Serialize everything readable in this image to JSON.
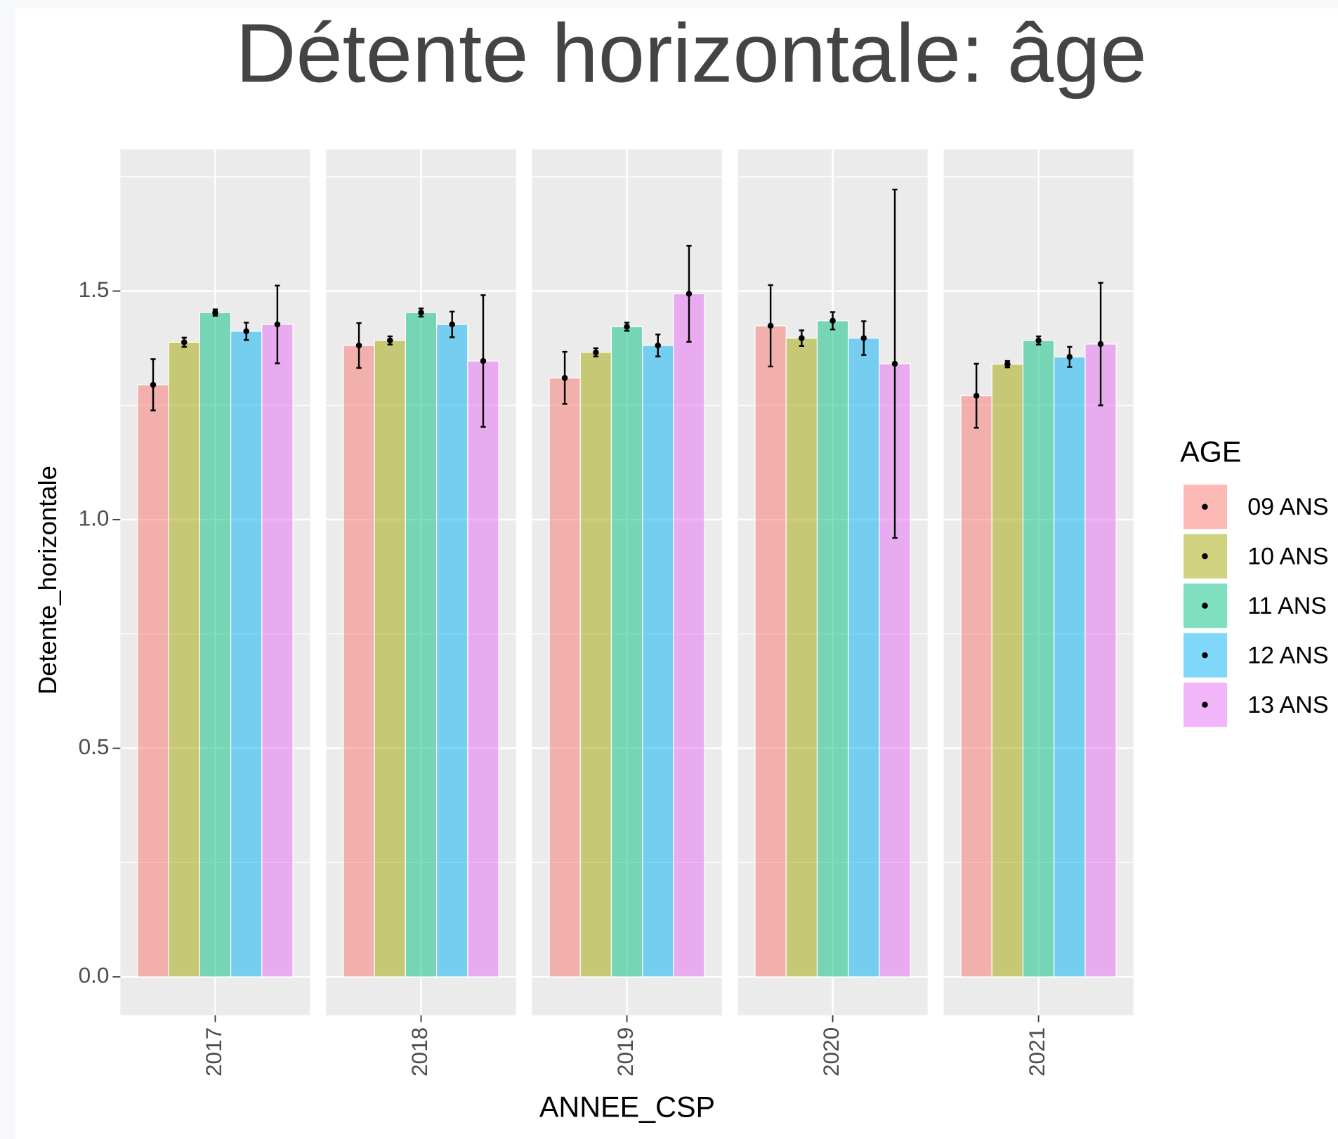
{
  "chart_data": {
    "type": "bar",
    "title": "Détente horizontale: âge",
    "x_label": "ANNEE_CSP",
    "y_label": "Detente_horizontale",
    "legend_title": "AGE",
    "categories": [
      "2017",
      "2018",
      "2019",
      "2020",
      "2021"
    ],
    "ylim": [
      -0.084,
      1.81
    ],
    "yticks": [
      {
        "value": 0,
        "label": "0.0"
      },
      0.5,
      {
        "value": 1,
        "label": "1.0"
      },
      1.5
    ],
    "minor_yticks": [
      0.25,
      0.75,
      1.25,
      1.75
    ],
    "grid": true,
    "legend_position": "right",
    "series": [
      {
        "name": "09 ANS",
        "color": "#F8766D",
        "values": [
          1.295,
          1.381,
          1.31,
          1.424,
          1.271
        ],
        "errors": [
          0.056,
          0.049,
          0.057,
          0.089,
          0.07
        ]
      },
      {
        "name": "10 ANS",
        "color": "#A3A500",
        "values": [
          1.388,
          1.392,
          1.366,
          1.397,
          1.34
        ],
        "errors": [
          0.01,
          0.009,
          0.009,
          0.017,
          0.007
        ]
      },
      {
        "name": "11 ANS",
        "color": "#00BF7D",
        "values": [
          1.453,
          1.453,
          1.422,
          1.435,
          1.392
        ],
        "errors": [
          0.007,
          0.009,
          0.009,
          0.019,
          0.009
        ]
      },
      {
        "name": "12 ANS",
        "color": "#00B0F6",
        "values": [
          1.412,
          1.427,
          1.381,
          1.397,
          1.356
        ],
        "errors": [
          0.019,
          0.028,
          0.024,
          0.037,
          0.022
        ]
      },
      {
        "name": "13 ANS",
        "color": "#E76BF3",
        "values": [
          1.427,
          1.347,
          1.494,
          1.341,
          1.384
        ],
        "errors": [
          0.085,
          0.144,
          0.105,
          0.381,
          0.134
        ]
      }
    ]
  }
}
